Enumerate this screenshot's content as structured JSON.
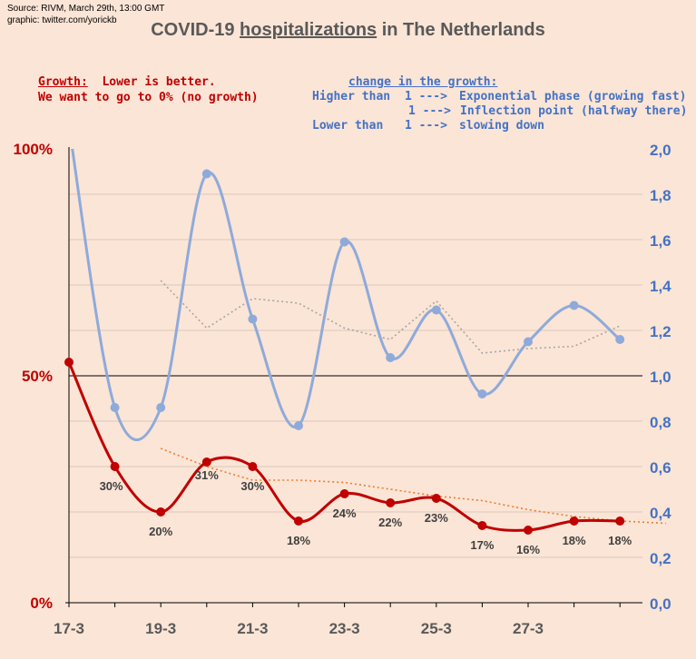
{
  "source": "Source: RIVM, March 29th, 13:00 GMT",
  "graphic": "graphic: twitter.com/yorickb",
  "title_prefix": "COVID-19 ",
  "title_underlined": "hospitalizations",
  "title_suffix": " in The Netherlands",
  "growth_note": {
    "label": "Growth:",
    "line1": "  Lower is better.",
    "line2": "We want to go to 0% (no growth)"
  },
  "change_note": {
    "header": "change in the growth:",
    "rows": [
      {
        "left": "Higher than",
        "value": "1 --->",
        "desc": "Exponential phase (growing fast)"
      },
      {
        "left": "",
        "value": "1 --->",
        "desc": "Inflection point (halfway there)"
      },
      {
        "left": "Lower than",
        "value": "1 --->",
        "desc": "slowing down"
      }
    ]
  },
  "colors": {
    "growth_line": "#c00000",
    "change_line": "#8eaadb",
    "growth_trend": "#ed7d31",
    "change_trend": "#a6a6a6",
    "left_axis": "#c00000",
    "right_axis": "#4472c4"
  },
  "chart_data": {
    "type": "line",
    "title": "COVID-19 hospitalizations in The Netherlands",
    "x_labels": [
      "17-3",
      "",
      "19-3",
      "",
      "21-3",
      "",
      "23-3",
      "",
      "25-3",
      "",
      "27-3",
      "",
      ""
    ],
    "left_axis": {
      "ticks": [
        "100%",
        "50%",
        "0%"
      ],
      "tick_values": [
        100,
        50,
        0
      ],
      "ylim": [
        0,
        100
      ]
    },
    "right_axis": {
      "ticks": [
        "2,0",
        "1,8",
        "1,6",
        "1,4",
        "1,2",
        "1,0",
        "0,8",
        "0,6",
        "0,4",
        "0,2",
        "0,0"
      ],
      "ylim": [
        0,
        2
      ]
    },
    "series": [
      {
        "name": "Growth",
        "axis": "left",
        "values": [
          53,
          30,
          20,
          31,
          30,
          18,
          24,
          22,
          23,
          17,
          16,
          18,
          18
        ],
        "labels": [
          "",
          "30%",
          "20%",
          "31%",
          "30%",
          "18%",
          "24%",
          "22%",
          "23%",
          "17%",
          "16%",
          "18%",
          "18%"
        ]
      },
      {
        "name": "Change in the growth",
        "axis": "right",
        "values": [
          2.1,
          0.86,
          0.86,
          1.89,
          1.25,
          0.78,
          1.59,
          1.08,
          1.29,
          0.92,
          1.15,
          1.31,
          1.16
        ]
      },
      {
        "name": "Growth trend",
        "axis": "left",
        "style": "dotted",
        "start_index": 2,
        "values": [
          34,
          30,
          27,
          27,
          26.5,
          25,
          23.5,
          22.5,
          20.5,
          19,
          18,
          17.5
        ]
      },
      {
        "name": "Change trend",
        "axis": "right",
        "style": "dotted",
        "start_index": 2,
        "values": [
          1.42,
          1.21,
          1.34,
          1.32,
          1.21,
          1.16,
          1.33,
          1.1,
          1.12,
          1.13,
          1.22
        ]
      }
    ]
  }
}
